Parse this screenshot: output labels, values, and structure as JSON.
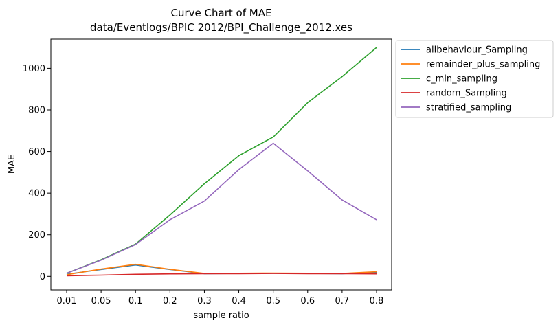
{
  "chart_data": {
    "type": "line",
    "title": "Curve Chart of MAE",
    "subtitle": "data/Eventlogs/BPIC 2012/BPI_Challenge_2012.xes",
    "xlabel": "sample ratio",
    "ylabel": "MAE",
    "categories": [
      "0.01",
      "0.05",
      "0.1",
      "0.2",
      "0.3",
      "0.4",
      "0.5",
      "0.6",
      "0.7",
      "0.8"
    ],
    "ylim": [
      -65,
      1140
    ],
    "yticks": [
      0,
      200,
      400,
      600,
      800,
      1000
    ],
    "grid": false,
    "legend_position": "outside-right",
    "series": [
      {
        "name": "allbehaviour_Sampling",
        "color": "#1f77b4",
        "values": [
          10,
          33,
          55,
          33,
          13,
          14,
          15,
          14,
          13,
          20
        ]
      },
      {
        "name": "remainder_plus_sampling",
        "color": "#ff7f0e",
        "values": [
          8,
          35,
          58,
          34,
          14,
          15,
          16,
          15,
          14,
          22
        ]
      },
      {
        "name": "c_min_sampling",
        "color": "#2ca02c",
        "values": [
          15,
          80,
          155,
          295,
          445,
          580,
          670,
          835,
          960,
          1100
        ]
      },
      {
        "name": "random_Sampling",
        "color": "#d62728",
        "values": [
          3,
          6,
          10,
          12,
          13,
          13,
          14,
          13,
          13,
          12
        ]
      },
      {
        "name": "stratified_sampling",
        "color": "#9467bd",
        "values": [
          15,
          78,
          153,
          272,
          362,
          513,
          640,
          507,
          367,
          272
        ]
      }
    ]
  }
}
